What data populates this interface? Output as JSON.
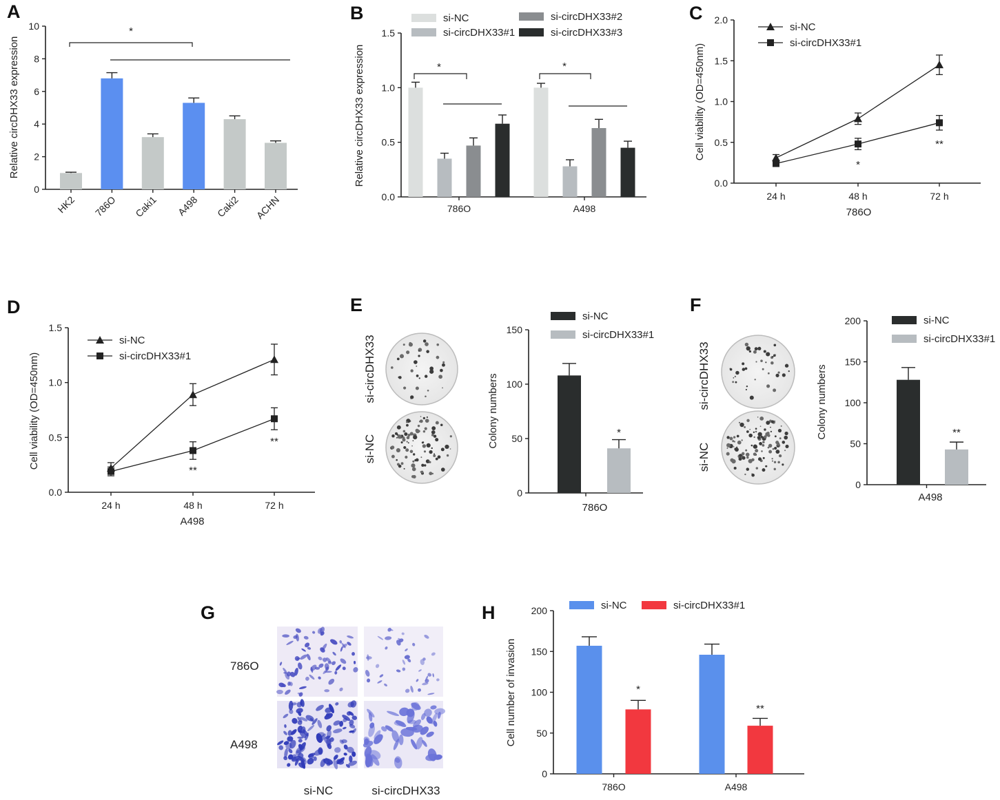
{
  "figure": {
    "colors": {
      "axis": "#222222",
      "grey_bar": "#c4c9c8",
      "blue_bar": "#5b8ff0",
      "light_bar": "#dcdfde",
      "mid_bar": "#b7bcc0",
      "dark_grey_bar": "#8a8d90",
      "black_bar": "#2a2d2d",
      "red_bar": "#f2383f",
      "blue_h": "#5a90ec"
    }
  },
  "chart_data": [
    {
      "id": "A",
      "panel_label": "A",
      "type": "bar",
      "title": "",
      "xlabel": "",
      "ylabel": "Relative circDHX33 expression",
      "ylim": [
        0,
        10
      ],
      "yticks": [
        "0",
        "2",
        "4",
        "6",
        "8",
        "10"
      ],
      "categories": [
        "HK2",
        "786O",
        "Caki1",
        "A498",
        "Caki2",
        "ACHN"
      ],
      "values": [
        1.0,
        6.8,
        3.2,
        5.3,
        4.3,
        2.85
      ],
      "errors": [
        0.05,
        0.35,
        0.2,
        0.3,
        0.2,
        0.12
      ],
      "bar_colors": [
        "#c4c9c8",
        "#5b8ff0",
        "#c4c9c8",
        "#5b8ff0",
        "#c4c9c8",
        "#c4c9c8"
      ],
      "significance": "*"
    },
    {
      "id": "B",
      "panel_label": "B",
      "type": "bar",
      "title": "",
      "xlabel": "",
      "ylabel": "Relative circDHX33 expression",
      "ylim": [
        0,
        1.5
      ],
      "yticks": [
        "0.0",
        "0.5",
        "1.0",
        "1.5"
      ],
      "categories": [
        "786O",
        "A498"
      ],
      "series": [
        {
          "name": "si-NC",
          "values": [
            1.0,
            1.0
          ],
          "errors": [
            0.05,
            0.04
          ],
          "color": "#dcdfde"
        },
        {
          "name": "si-circDHX33#1",
          "values": [
            0.35,
            0.28
          ],
          "errors": [
            0.05,
            0.06
          ],
          "color": "#b7bcc0"
        },
        {
          "name": "si-circDHX33#2",
          "values": [
            0.47,
            0.63
          ],
          "errors": [
            0.07,
            0.08
          ],
          "color": "#8a8d90"
        },
        {
          "name": "si-circDHX33#3",
          "values": [
            0.67,
            0.45
          ],
          "errors": [
            0.08,
            0.06
          ],
          "color": "#2a2d2d"
        }
      ],
      "significance": [
        "*",
        "*"
      ]
    },
    {
      "id": "C",
      "panel_label": "C",
      "type": "line",
      "title": "",
      "xlabel": "786O",
      "ylabel": "Cell viability (OD=450nm)",
      "ylim": [
        0,
        2.0
      ],
      "yticks": [
        "0.0",
        "0.5",
        "1.0",
        "1.5",
        "2.0"
      ],
      "x": [
        "24 h",
        "48 h",
        "72 h"
      ],
      "series": [
        {
          "name": "si-NC",
          "marker": "triangle",
          "values": [
            0.31,
            0.79,
            1.45
          ],
          "errors": [
            0.04,
            0.07,
            0.12
          ]
        },
        {
          "name": "si-circDHX33#1",
          "marker": "square",
          "values": [
            0.24,
            0.48,
            0.74
          ],
          "errors": [
            0.03,
            0.07,
            0.09
          ]
        }
      ],
      "significance": [
        "",
        "*",
        "**"
      ]
    },
    {
      "id": "D",
      "panel_label": "D",
      "type": "line",
      "title": "",
      "xlabel": "A498",
      "ylabel": "Cell viability (OD=450nm)",
      "ylim": [
        0,
        1.5
      ],
      "yticks": [
        "0.0",
        "0.5",
        "1.0",
        "1.5"
      ],
      "x": [
        "24 h",
        "48 h",
        "72 h"
      ],
      "series": [
        {
          "name": "si-NC",
          "marker": "triangle",
          "values": [
            0.22,
            0.89,
            1.21
          ],
          "errors": [
            0.05,
            0.1,
            0.14
          ]
        },
        {
          "name": "si-circDHX33#1",
          "marker": "square",
          "values": [
            0.19,
            0.38,
            0.67
          ],
          "errors": [
            0.04,
            0.08,
            0.1
          ]
        }
      ],
      "significance": [
        "",
        "**",
        "**"
      ]
    },
    {
      "id": "E",
      "panel_label": "E",
      "type": "bar",
      "title": "",
      "xlabel": "786O",
      "ylabel": "Colony numbers",
      "ylim": [
        0,
        150
      ],
      "yticks": [
        "0",
        "50",
        "100",
        "150"
      ],
      "series": [
        {
          "name": "si-NC",
          "value": 108,
          "error": 11,
          "color": "#2a2d2d"
        },
        {
          "name": "si-circDHX33#1",
          "value": 41,
          "error": 8,
          "color": "#b7bcc0"
        }
      ],
      "significance": "*",
      "images": {
        "top_label": "si-circDHX33",
        "bottom_label": "si-NC"
      }
    },
    {
      "id": "F",
      "panel_label": "F",
      "type": "bar",
      "title": "",
      "xlabel": "A498",
      "ylabel": "Colony numbers",
      "ylim": [
        0,
        200
      ],
      "yticks": [
        "0",
        "50",
        "100",
        "150",
        "200"
      ],
      "series": [
        {
          "name": "si-NC",
          "value": 128,
          "error": 15,
          "color": "#2a2d2d"
        },
        {
          "name": "si-circDHX33#1",
          "value": 43,
          "error": 9,
          "color": "#b7bcc0"
        }
      ],
      "significance": "**",
      "images": {
        "top_label": "si-circDHX33",
        "bottom_label": "si-NC"
      }
    },
    {
      "id": "H",
      "panel_label": "H",
      "type": "bar",
      "title": "",
      "xlabel": "",
      "ylabel": "Cell number of invasion",
      "ylim": [
        0,
        200
      ],
      "yticks": [
        "0",
        "50",
        "100",
        "150",
        "200"
      ],
      "categories": [
        "786O",
        "A498"
      ],
      "series": [
        {
          "name": "si-NC",
          "values": [
            157,
            146
          ],
          "errors": [
            11,
            13
          ],
          "color": "#5a90ec"
        },
        {
          "name": "si-circDHX33#1",
          "values": [
            79,
            59
          ],
          "errors": [
            11,
            9
          ],
          "color": "#f2383f"
        }
      ],
      "significance": [
        "*",
        "**"
      ]
    }
  ],
  "panel_g": {
    "label": "G",
    "row_labels": [
      "786O",
      "A498"
    ],
    "column_labels": [
      "si-NC",
      "si-circDHX33"
    ]
  }
}
